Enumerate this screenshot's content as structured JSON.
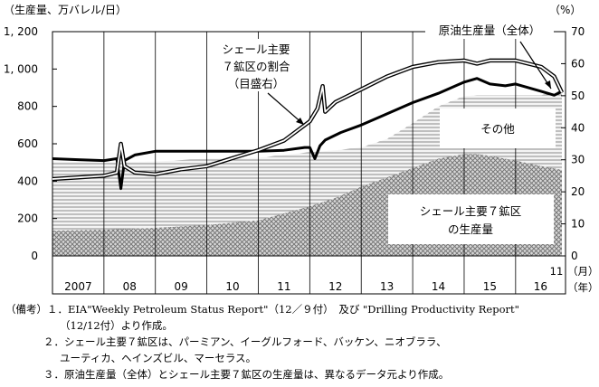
{
  "chart_data": {
    "type": "area",
    "left_axis_title": "（生産量、万バレル/日）",
    "right_axis_title": "（%）",
    "left_ticks": [
      "1, 200",
      "1, 000",
      "800",
      "600",
      "400",
      "200",
      "0"
    ],
    "right_ticks": [
      "70",
      "60",
      "50",
      "40",
      "30",
      "20",
      "10",
      "0"
    ],
    "ylim_left": [
      0,
      1200
    ],
    "ylim_right": [
      0,
      70
    ],
    "x_labels": [
      "2007",
      "08",
      "09",
      "10",
      "11",
      "12",
      "13",
      "14",
      "15",
      "16"
    ],
    "x_last_label": "11",
    "x_unit_month": "（月）",
    "x_unit_year": "（年）",
    "series": [
      {
        "name": "シェール主要7鉱区の生産量",
        "x": [
          2007.0,
          2008.0,
          2009.0,
          2010.0,
          2011.0,
          2012.0,
          2012.5,
          2013.0,
          2013.5,
          2014.0,
          2014.5,
          2015.0,
          2015.25,
          2015.5,
          2016.0,
          2016.5,
          2016.9
        ],
        "values": [
          135,
          140,
          150,
          165,
          190,
          265,
          310,
          370,
          420,
          470,
          520,
          545,
          545,
          535,
          510,
          480,
          460
        ]
      },
      {
        "name": "その他",
        "x": [
          2007.0,
          2008.0,
          2009.0,
          2010.0,
          2011.0,
          2012.0,
          2012.5,
          2013.0,
          2013.5,
          2014.0,
          2014.5,
          2015.0,
          2015.25,
          2015.5,
          2016.0,
          2016.5,
          2016.9
        ],
        "values": [
          505,
          500,
          505,
          520,
          525,
          555,
          565,
          580,
          625,
          710,
          800,
          855,
          860,
          860,
          860,
          860,
          885
        ]
      },
      {
        "name": "原油生産量（全体）",
        "x": [
          2007.0,
          2007.5,
          2008.0,
          2008.25,
          2008.33,
          2008.4,
          2008.6,
          2009.0,
          2009.5,
          2010.0,
          2010.5,
          2011.0,
          2011.5,
          2011.9,
          2012.0,
          2012.1,
          2012.2,
          2012.3,
          2012.6,
          2013.0,
          2013.5,
          2014.0,
          2014.5,
          2015.0,
          2015.25,
          2015.5,
          2015.8,
          2016.0,
          2016.5,
          2016.75,
          2016.9
        ],
        "values": [
          520,
          515,
          510,
          520,
          360,
          510,
          540,
          560,
          560,
          560,
          560,
          560,
          565,
          580,
          580,
          520,
          590,
          620,
          660,
          700,
          760,
          820,
          870,
          930,
          950,
          920,
          910,
          920,
          880,
          860,
          880
        ]
      },
      {
        "name": "シェール主要7鉱区の割合（目盛右）",
        "x": [
          2007.0,
          2007.5,
          2008.0,
          2008.25,
          2008.33,
          2008.4,
          2008.6,
          2009.0,
          2009.5,
          2010.0,
          2010.5,
          2011.0,
          2011.5,
          2012.0,
          2012.15,
          2012.25,
          2012.3,
          2012.5,
          2013.0,
          2013.5,
          2014.0,
          2014.5,
          2015.0,
          2015.25,
          2015.5,
          2016.0,
          2016.5,
          2016.75,
          2016.9
        ],
        "values": [
          24,
          24.5,
          25,
          26,
          35,
          28,
          26,
          25.5,
          27,
          28,
          30.5,
          33,
          36,
          42,
          46,
          53,
          45,
          48,
          52,
          56,
          59,
          60.5,
          61,
          60,
          61,
          61,
          59,
          56,
          51
        ],
        "axis": "right"
      }
    ],
    "annotations": {
      "share": [
        "シェール主要",
        "７鉱区の割合",
        "（目盛右）"
      ],
      "total": "原油生産量（全体）",
      "other": "その他",
      "shale": [
        "シェール主要７鉱区",
        "の生産量"
      ]
    },
    "colors": {
      "line": "#000000",
      "band_bg": "#f4f4f4",
      "hatch": "#8a8a8a",
      "crosshatch": "#777777"
    }
  },
  "notes": [
    "（備考）１．EIA\"Weekly Petroleum Status Report\"（12／９付）　及び \"Drilling Productivity Report\"",
    "（12/12付）より作成。",
    "２．シェール主要７鉱区は、パーミアン、イーグルフォード、バッケン、ニオブララ、",
    "ユーティカ、ヘインズビル、マーセラス。",
    "３．原油生産量（全体）とシェール主要７鉱区の生産量は、異なるデータ元より作成。"
  ]
}
